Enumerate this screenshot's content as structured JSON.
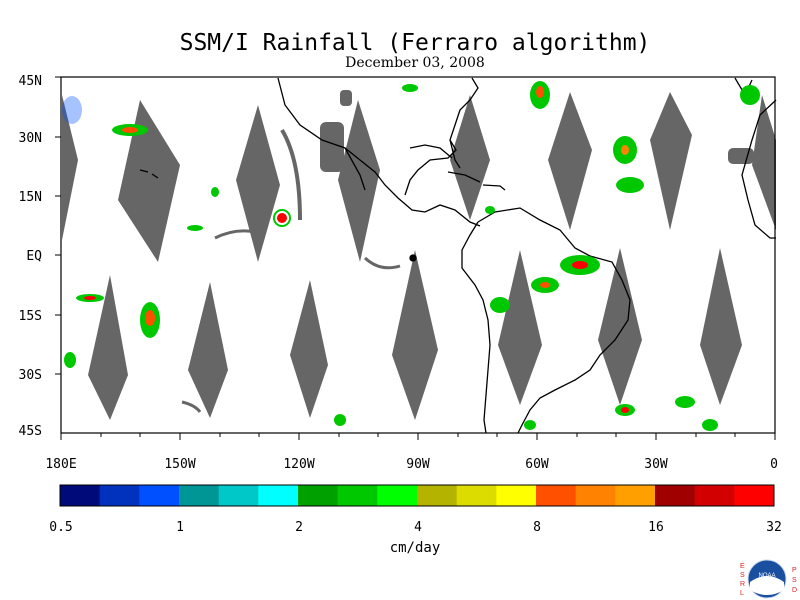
{
  "title": "SSM/I Rainfall (Ferraro algorithm)",
  "subtitle": "December 03, 2008",
  "lat_labels": [
    "45N",
    "30N",
    "15N",
    "EQ",
    "15S",
    "30S",
    "45S"
  ],
  "lon_labels": [
    "180E",
    "150W",
    "120W",
    "90W",
    "60W",
    "30W",
    "0"
  ],
  "colorbar": {
    "colors": [
      "#000a78",
      "#0032be",
      "#0050ff",
      "#009696",
      "#00c8c8",
      "#00ffff",
      "#00a000",
      "#00c800",
      "#00ff00",
      "#b4b400",
      "#dcdc00",
      "#ffff00",
      "#ff5000",
      "#ff8200",
      "#ffa000",
      "#a00000",
      "#d20000",
      "#ff0000"
    ],
    "tick_labels": [
      "0.5",
      "1",
      "2",
      "4",
      "8",
      "16",
      "32"
    ],
    "unit": "cm/day"
  },
  "swath_gap_color": "#666666",
  "logo": {
    "left_letters": "ESRL",
    "right_letters": "PSD",
    "emblem_text": "NOAA"
  }
}
